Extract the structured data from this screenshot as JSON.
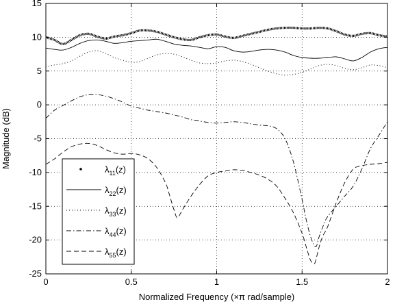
{
  "chart_data": {
    "type": "line",
    "title": "",
    "xlabel": "Normalized Frequency  (×π rad/sample)",
    "ylabel": "Magnitude (dB)",
    "xlim": [
      0,
      2
    ],
    "ylim": [
      -25,
      15
    ],
    "xticks": [
      "0",
      "0.5",
      "1",
      "1.5",
      "2"
    ],
    "yticks": [
      "-25",
      "-20",
      "-15",
      "-10",
      "-5",
      "0",
      "5",
      "10",
      "15"
    ],
    "grid": true,
    "legend_position": "bottom-left",
    "series": [
      {
        "name": "λ11(z)",
        "style": "dots-thick",
        "color": "#000000",
        "x": [
          0,
          0.05,
          0.1,
          0.15,
          0.2,
          0.25,
          0.3,
          0.35,
          0.4,
          0.45,
          0.5,
          0.55,
          0.6,
          0.65,
          0.7,
          0.75,
          0.8,
          0.85,
          0.9,
          0.95,
          1.0,
          1.05,
          1.1,
          1.15,
          1.2,
          1.25,
          1.3,
          1.35,
          1.4,
          1.45,
          1.5,
          1.55,
          1.6,
          1.65,
          1.7,
          1.75,
          1.8,
          1.85,
          1.9,
          1.95,
          2.0
        ],
        "y": [
          10.0,
          9.6,
          9.0,
          9.6,
          10.3,
          10.5,
          10.1,
          9.8,
          10.1,
          10.3,
          10.6,
          11.0,
          11.0,
          10.8,
          10.4,
          10.0,
          9.7,
          9.6,
          10.0,
          10.3,
          10.4,
          10.1,
          9.9,
          10.2,
          10.5,
          10.8,
          11.1,
          11.3,
          11.4,
          11.4,
          11.3,
          11.3,
          11.4,
          11.3,
          10.9,
          10.4,
          10.2,
          10.5,
          10.6,
          10.3,
          10.1
        ]
      },
      {
        "name": "λ22(z)",
        "style": "solid",
        "color": "#000000",
        "x": [
          0,
          0.05,
          0.1,
          0.15,
          0.2,
          0.25,
          0.3,
          0.35,
          0.4,
          0.45,
          0.5,
          0.55,
          0.6,
          0.65,
          0.7,
          0.75,
          0.8,
          0.85,
          0.9,
          0.95,
          1.0,
          1.05,
          1.1,
          1.15,
          1.2,
          1.25,
          1.3,
          1.35,
          1.4,
          1.45,
          1.5,
          1.55,
          1.6,
          1.65,
          1.7,
          1.75,
          1.8,
          1.85,
          1.9,
          1.95,
          2.0
        ],
        "y": [
          8.4,
          8.2,
          8.1,
          8.5,
          9.1,
          9.5,
          9.6,
          9.4,
          9.1,
          9.2,
          9.4,
          9.5,
          9.6,
          9.7,
          9.4,
          9.0,
          8.8,
          8.7,
          8.5,
          8.3,
          8.6,
          8.5,
          8.0,
          7.8,
          7.9,
          8.1,
          8.2,
          8.1,
          7.8,
          7.3,
          7.0,
          6.9,
          6.9,
          7.0,
          7.1,
          6.8,
          6.5,
          7.0,
          7.8,
          8.3,
          8.5
        ]
      },
      {
        "name": "λ33(z)",
        "style": "dotted",
        "color": "#000000",
        "x": [
          0,
          0.05,
          0.1,
          0.15,
          0.2,
          0.25,
          0.3,
          0.35,
          0.4,
          0.45,
          0.5,
          0.55,
          0.6,
          0.65,
          0.7,
          0.75,
          0.8,
          0.85,
          0.9,
          0.95,
          1.0,
          1.05,
          1.1,
          1.15,
          1.2,
          1.25,
          1.3,
          1.35,
          1.4,
          1.45,
          1.5,
          1.55,
          1.6,
          1.65,
          1.7,
          1.75,
          1.8,
          1.85,
          1.9,
          1.95,
          2.0
        ],
        "y": [
          5.6,
          5.9,
          6.1,
          6.5,
          7.2,
          7.8,
          8.0,
          7.6,
          7.0,
          6.6,
          6.3,
          6.4,
          6.9,
          7.4,
          7.6,
          7.5,
          7.1,
          6.6,
          6.2,
          6.1,
          6.2,
          6.5,
          6.6,
          6.4,
          6.0,
          5.5,
          5.0,
          4.6,
          4.4,
          4.5,
          4.8,
          5.3,
          5.8,
          6.0,
          5.8,
          5.4,
          5.2,
          5.5,
          5.9,
          5.8,
          5.5
        ]
      },
      {
        "name": "λ44(z)",
        "style": "dashdot",
        "color": "#000000",
        "x": [
          0,
          0.05,
          0.1,
          0.15,
          0.2,
          0.25,
          0.3,
          0.35,
          0.4,
          0.45,
          0.5,
          0.55,
          0.6,
          0.65,
          0.7,
          0.75,
          0.8,
          0.85,
          0.9,
          0.95,
          1.0,
          1.05,
          1.1,
          1.15,
          1.2,
          1.25,
          1.3,
          1.35,
          1.4,
          1.45,
          1.5,
          1.52,
          1.55,
          1.58,
          1.6,
          1.63,
          1.65,
          1.7,
          1.75,
          1.8,
          1.85,
          1.9,
          1.95,
          2.0
        ],
        "y": [
          -2.0,
          -0.8,
          -0.1,
          0.6,
          1.2,
          1.5,
          1.5,
          1.3,
          0.9,
          0.4,
          -0.2,
          -0.5,
          -0.8,
          -1.0,
          -1.2,
          -1.5,
          -1.8,
          -2.2,
          -2.4,
          -2.6,
          -2.7,
          -2.6,
          -2.5,
          -2.6,
          -2.8,
          -3.0,
          -3.1,
          -3.5,
          -5.0,
          -8.5,
          -14.0,
          -16.5,
          -19.5,
          -21.0,
          -19.5,
          -17.5,
          -16.5,
          -15.0,
          -13.5,
          -12.0,
          -9.5,
          -6.5,
          -4.5,
          -2.5
        ]
      },
      {
        "name": "λ55(z)",
        "style": "dashed",
        "color": "#000000",
        "x": [
          0,
          0.05,
          0.1,
          0.15,
          0.2,
          0.25,
          0.3,
          0.35,
          0.4,
          0.45,
          0.5,
          0.55,
          0.6,
          0.65,
          0.7,
          0.72,
          0.75,
          0.77,
          0.8,
          0.85,
          0.9,
          0.95,
          1.0,
          1.05,
          1.1,
          1.15,
          1.2,
          1.25,
          1.3,
          1.35,
          1.4,
          1.45,
          1.5,
          1.53,
          1.55,
          1.57,
          1.58,
          1.6,
          1.62,
          1.65,
          1.7,
          1.75,
          1.8,
          1.85,
          1.9,
          1.95,
          2.0
        ],
        "y": [
          -8.8,
          -8.0,
          -7.0,
          -6.2,
          -5.8,
          -5.7,
          -6.0,
          -6.6,
          -7.1,
          -7.3,
          -7.2,
          -7.4,
          -8.0,
          -9.3,
          -11.5,
          -13.0,
          -15.5,
          -16.7,
          -15.5,
          -13.5,
          -11.8,
          -10.5,
          -10.0,
          -9.8,
          -9.6,
          -9.7,
          -10.0,
          -10.4,
          -11.0,
          -12.0,
          -13.8,
          -16.0,
          -19.0,
          -21.5,
          -23.0,
          -23.5,
          -23.0,
          -21.0,
          -19.5,
          -18.0,
          -14.5,
          -11.5,
          -9.5,
          -9.0,
          -8.8,
          -8.7,
          -8.5
        ]
      }
    ],
    "legend": [
      {
        "sym": "λ",
        "sub": "11",
        "suffix": "(z)",
        "style": "dots-thick"
      },
      {
        "sym": "λ",
        "sub": "22",
        "suffix": "(z)",
        "style": "solid"
      },
      {
        "sym": "λ",
        "sub": "33",
        "suffix": "(z)",
        "style": "dotted"
      },
      {
        "sym": "λ",
        "sub": "44",
        "suffix": "(z)",
        "style": "dashdot"
      },
      {
        "sym": "λ",
        "sub": "55",
        "suffix": "(z)",
        "style": "dashed"
      }
    ]
  }
}
